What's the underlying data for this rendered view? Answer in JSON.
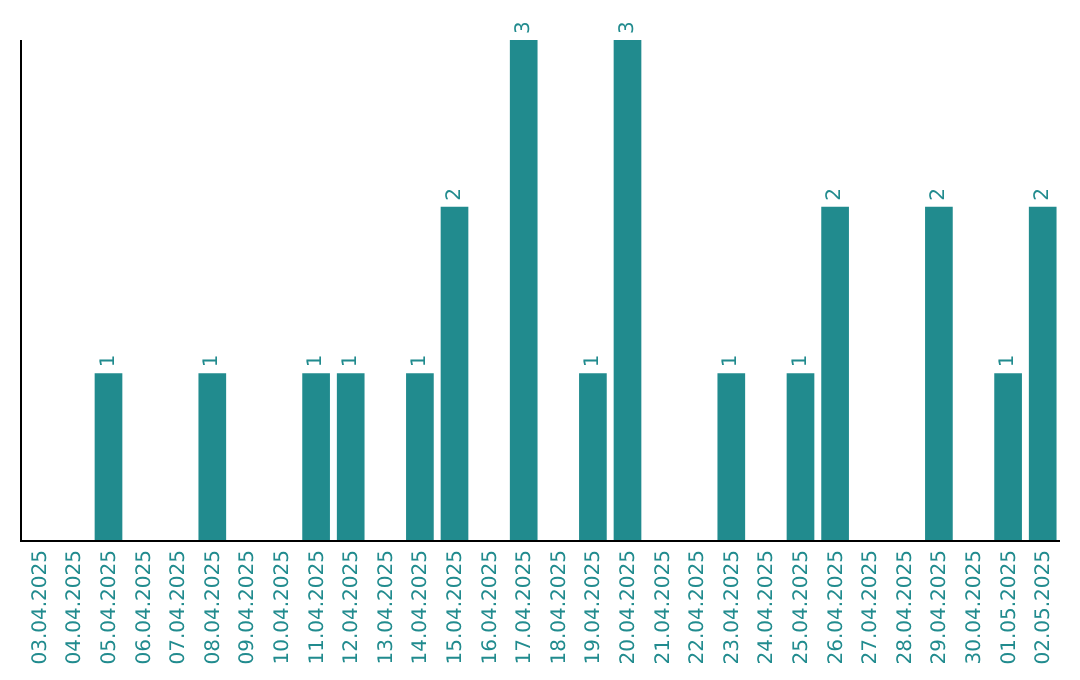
{
  "chart_data": {
    "type": "bar",
    "categories": [
      "03.04.2025",
      "04.04.2025",
      "05.04.2025",
      "06.04.2025",
      "07.04.2025",
      "08.04.2025",
      "09.04.2025",
      "10.04.2025",
      "11.04.2025",
      "12.04.2025",
      "13.04.2025",
      "14.04.2025",
      "15.04.2025",
      "16.04.2025",
      "17.04.2025",
      "18.04.2025",
      "19.04.2025",
      "20.04.2025",
      "21.04.2025",
      "22.04.2025",
      "23.04.2025",
      "24.04.2025",
      "25.04.2025",
      "26.04.2025",
      "27.04.2025",
      "28.04.2025",
      "29.04.2025",
      "30.04.2025",
      "01.05.2025",
      "02.05.2025"
    ],
    "values": [
      0,
      0,
      1,
      0,
      0,
      1,
      0,
      0,
      1,
      1,
      0,
      1,
      2,
      0,
      3,
      0,
      1,
      3,
      0,
      0,
      1,
      0,
      1,
      2,
      0,
      0,
      2,
      0,
      1,
      2
    ],
    "value_labels": [
      null,
      null,
      "1",
      null,
      null,
      "1",
      null,
      null,
      "1",
      "1",
      null,
      "1",
      "2",
      null,
      "3",
      null,
      "1",
      "3",
      null,
      null,
      "1",
      null,
      "1",
      "2",
      null,
      null,
      "2",
      null,
      "1",
      "2"
    ],
    "color": "#218b8e",
    "ylim": [
      0,
      3
    ],
    "tick_labels": "x"
  }
}
